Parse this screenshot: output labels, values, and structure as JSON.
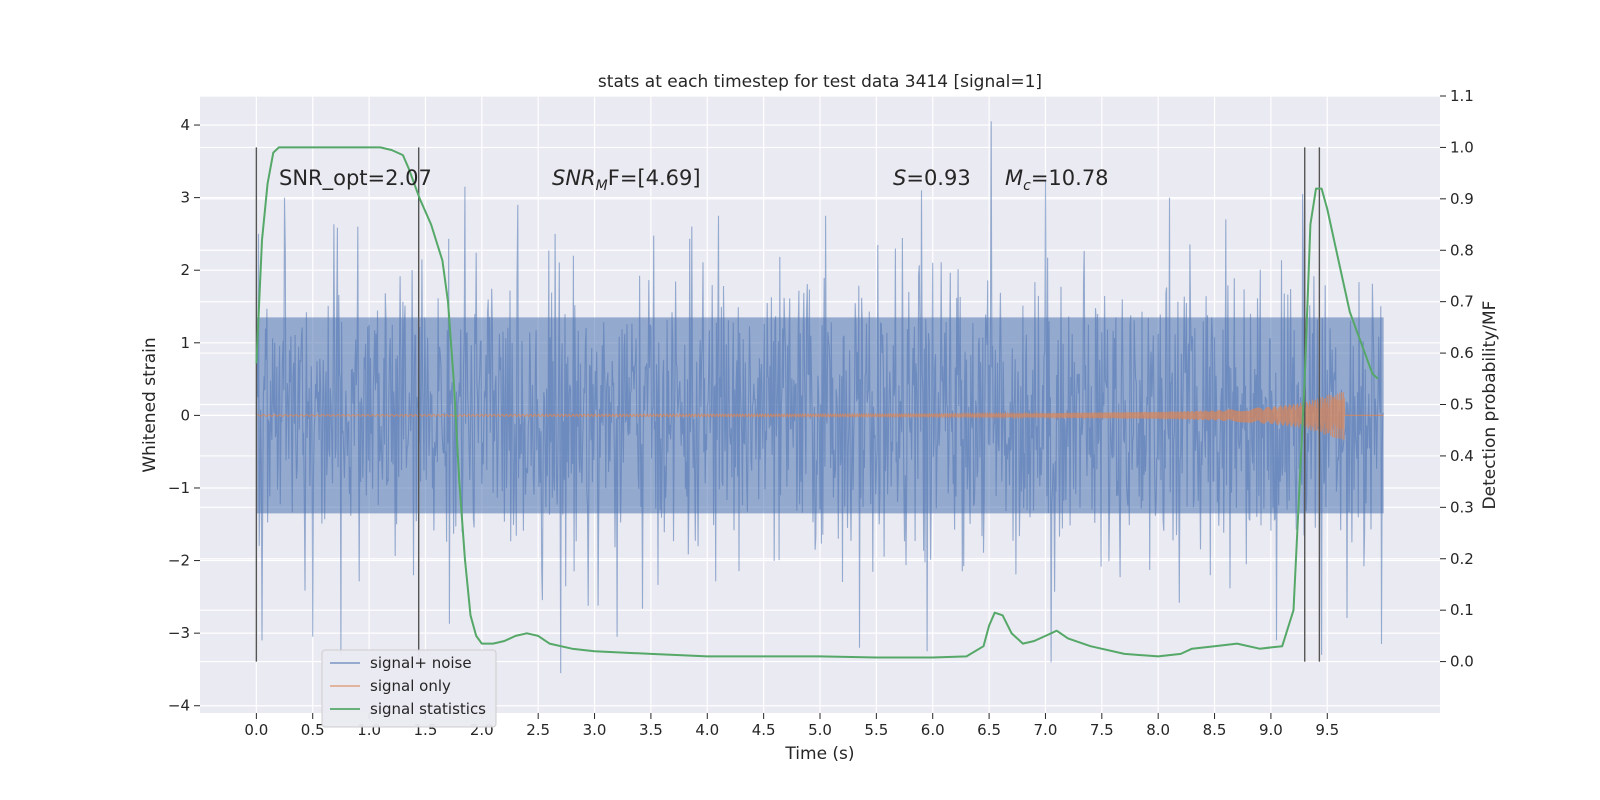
{
  "chart_data": {
    "type": "line",
    "title": "stats at each timestep for test data 3414 [signal=1]",
    "xlabel": "Time (s)",
    "ylabel": "Whitened strain",
    "y2label": "Detection probability/MF",
    "xlim": [
      -0.5,
      10.5
    ],
    "ylim": [
      -4.1,
      4.4
    ],
    "y2lim": [
      -0.1,
      1.1
    ],
    "xticks": [
      "0.0",
      "0.5",
      "1.0",
      "1.5",
      "2.0",
      "2.5",
      "3.0",
      "3.5",
      "4.0",
      "4.5",
      "5.0",
      "5.5",
      "6.0",
      "6.5",
      "7.0",
      "7.5",
      "8.0",
      "8.5",
      "9.0",
      "9.5"
    ],
    "yticks": [
      "−4",
      "−3",
      "−2",
      "−1",
      "0",
      "1",
      "2",
      "3",
      "4"
    ],
    "y2ticks": [
      "0.0",
      "0.1",
      "0.2",
      "0.3",
      "0.4",
      "0.5",
      "0.6",
      "0.7",
      "0.8",
      "0.9",
      "1.0",
      "1.1"
    ],
    "grid": true,
    "legend_position": "lower-left",
    "annotations": {
      "snr_opt": "SNR_opt=2.07",
      "snr_mf": "SNR_MF=[4.69]",
      "snr_mf_main": "SNR",
      "snr_mf_sub": "M",
      "snr_mf_rest": "F=[4.69]",
      "s_value": "S=0.93",
      "s_main": "S",
      "s_rest": "=0.93",
      "mc_value": "M_c=10.78",
      "mc_main": "M",
      "mc_sub": "c",
      "mc_rest": "=10.78"
    },
    "vertical_markers_s": [
      0.0,
      1.44,
      9.3,
      9.43
    ],
    "series": [
      {
        "name": "signal+ noise",
        "color": "#4c72b0",
        "x_range": [
          0.0,
          10.0
        ],
        "core_band": [
          -1.35,
          1.35
        ],
        "peaks_up": [
          [
            0.02,
            2.5
          ],
          [
            0.25,
            3.0
          ],
          [
            0.9,
            2.6
          ],
          [
            1.85,
            3.15
          ],
          [
            2.65,
            2.5
          ],
          [
            4.1,
            2.75
          ],
          [
            5.05,
            2.75
          ],
          [
            5.9,
            3.1
          ],
          [
            6.52,
            4.05
          ],
          [
            7.0,
            3.25
          ],
          [
            8.1,
            3.0
          ],
          [
            8.6,
            2.7
          ],
          [
            9.28,
            3.05
          ],
          [
            9.98,
            2.65
          ]
        ],
        "peaks_down": [
          [
            0.05,
            -3.1
          ],
          [
            0.5,
            -3.05
          ],
          [
            0.75,
            -3.3
          ],
          [
            2.7,
            -3.55
          ],
          [
            3.2,
            -3.05
          ],
          [
            5.35,
            -3.2
          ],
          [
            5.95,
            -3.25
          ],
          [
            7.05,
            -3.4
          ],
          [
            9.05,
            -3.1
          ],
          [
            9.45,
            -3.3
          ],
          [
            9.98,
            -3.15
          ]
        ]
      },
      {
        "name": "signal only",
        "color": "#dd8452",
        "x": [
          0.0,
          6.0,
          7.0,
          8.0,
          8.5,
          9.0,
          9.3,
          9.5,
          9.65
        ],
        "amplitude": [
          0.01,
          0.02,
          0.03,
          0.05,
          0.07,
          0.12,
          0.18,
          0.28,
          0.35
        ],
        "constant_after": 0.0
      },
      {
        "name": "signal statistics",
        "color": "#55a868",
        "axis": "right",
        "x": [
          0.0,
          0.05,
          0.1,
          0.15,
          0.2,
          0.3,
          0.5,
          1.0,
          1.1,
          1.2,
          1.3,
          1.35,
          1.45,
          1.55,
          1.65,
          1.7,
          1.75,
          1.8,
          1.85,
          1.9,
          1.95,
          2.0,
          2.1,
          2.2,
          2.3,
          2.4,
          2.5,
          2.6,
          2.8,
          3.0,
          3.5,
          4.0,
          4.5,
          5.0,
          5.5,
          6.0,
          6.3,
          6.45,
          6.5,
          6.55,
          6.62,
          6.7,
          6.8,
          6.9,
          7.0,
          7.1,
          7.2,
          7.4,
          7.7,
          8.0,
          8.2,
          8.3,
          8.5,
          8.7,
          8.9,
          9.1,
          9.2,
          9.3,
          9.35,
          9.4,
          9.45,
          9.5,
          9.6,
          9.7,
          9.8,
          9.9,
          9.95
        ],
        "y": [
          0.58,
          0.82,
          0.93,
          0.99,
          1.0,
          1.0,
          1.0,
          1.0,
          1.0,
          0.995,
          0.985,
          0.96,
          0.9,
          0.85,
          0.78,
          0.7,
          0.55,
          0.35,
          0.2,
          0.09,
          0.05,
          0.035,
          0.035,
          0.04,
          0.05,
          0.055,
          0.05,
          0.035,
          0.025,
          0.02,
          0.015,
          0.01,
          0.01,
          0.01,
          0.008,
          0.008,
          0.01,
          0.03,
          0.07,
          0.095,
          0.09,
          0.055,
          0.035,
          0.04,
          0.05,
          0.06,
          0.045,
          0.03,
          0.015,
          0.01,
          0.015,
          0.025,
          0.03,
          0.035,
          0.025,
          0.03,
          0.1,
          0.55,
          0.85,
          0.92,
          0.92,
          0.88,
          0.78,
          0.68,
          0.62,
          0.56,
          0.55
        ]
      }
    ]
  }
}
